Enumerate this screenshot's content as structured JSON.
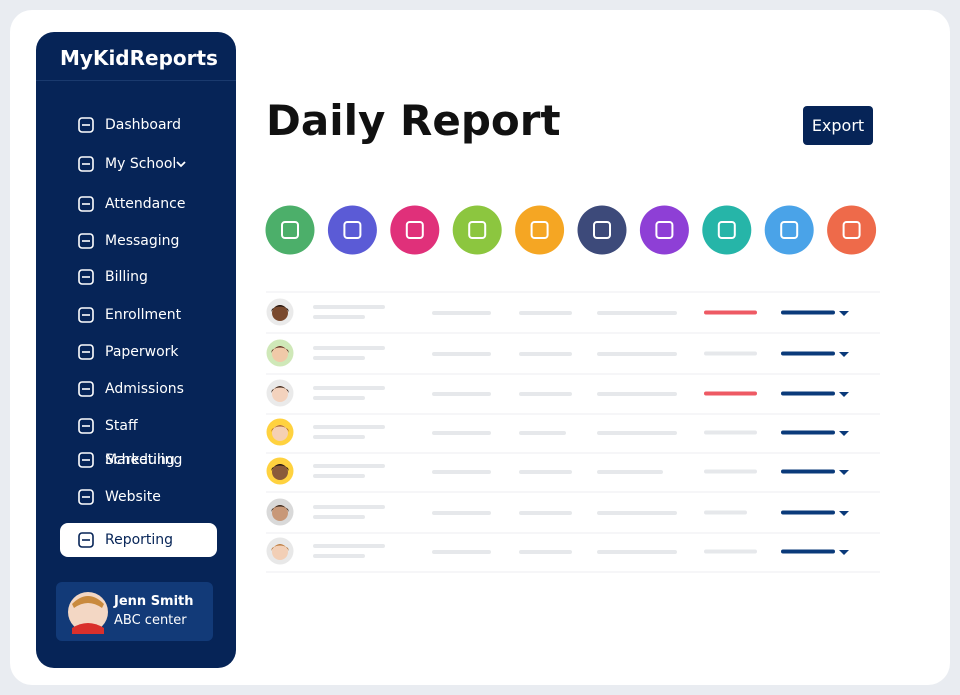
{
  "sidebar": {
    "brand": "MyKidReports",
    "nav": [
      "Dashboard",
      "My School",
      "Attendance",
      "Messaging",
      "Billing",
      "Enrollment",
      "Paperwork",
      "Admissions",
      "Staff Scheduling",
      "Marketing",
      "Website",
      "Reporting"
    ],
    "user": {
      "name": "Jenn Smith",
      "center": "ABC center"
    }
  },
  "header": {
    "title": "Daily Report",
    "export": "Export"
  }
}
